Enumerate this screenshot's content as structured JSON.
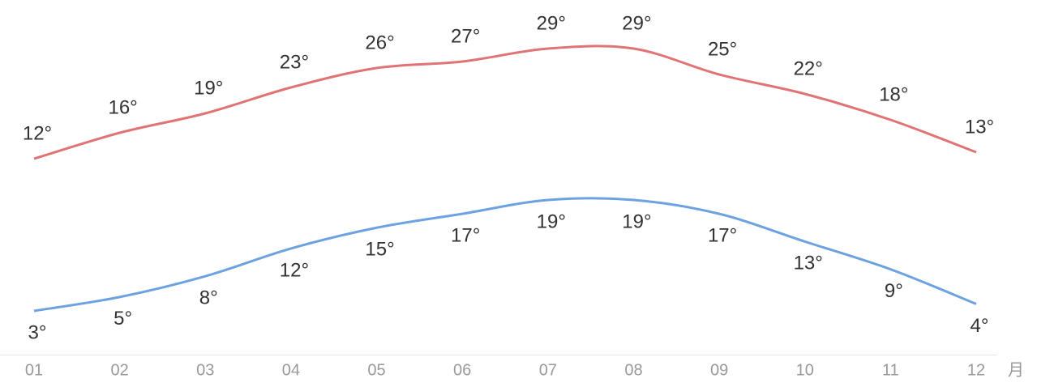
{
  "chart_data": {
    "type": "line",
    "categories": [
      "01",
      "02",
      "03",
      "04",
      "05",
      "06",
      "07",
      "08",
      "09",
      "10",
      "11",
      "12"
    ],
    "x_unit": "月",
    "series": [
      {
        "color": "#e07373",
        "values": [
          12,
          16,
          19,
          23,
          26,
          27,
          29,
          29,
          25,
          22,
          18,
          13
        ],
        "value_labels": [
          "12°",
          "16°",
          "19°",
          "23°",
          "26°",
          "27°",
          "29°",
          "29°",
          "25°",
          "22°",
          "18°",
          "13°"
        ]
      },
      {
        "color": "#6ca2e0",
        "values": [
          3,
          5,
          8,
          12,
          15,
          17,
          19,
          19,
          17,
          13,
          9,
          4
        ],
        "value_labels": [
          "3°",
          "5°",
          "8°",
          "12°",
          "15°",
          "17°",
          "19°",
          "19°",
          "17°",
          "13°",
          "9°",
          "4°"
        ]
      }
    ]
  }
}
